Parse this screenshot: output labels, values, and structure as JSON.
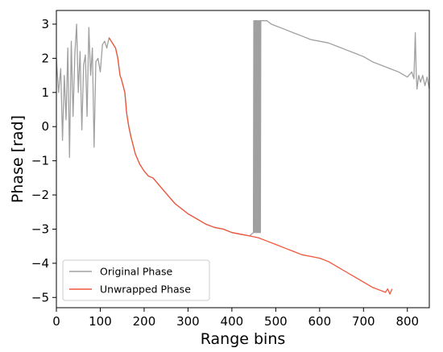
{
  "chart_data": {
    "type": "line",
    "xlabel": "Range bins",
    "ylabel": "Phase [rad]",
    "xlim": [
      0,
      850
    ],
    "ylim": [
      -5.3,
      3.4
    ],
    "xticks": [
      0,
      100,
      200,
      300,
      400,
      500,
      600,
      700,
      800
    ],
    "yticks": [
      -5,
      -4,
      -3,
      -2,
      -1,
      0,
      1,
      2,
      3
    ],
    "grid": false,
    "legend_position": "lower-left",
    "series": [
      {
        "name": "Original Phase",
        "color": "#a0a0a0",
        "x": [
          0,
          5,
          10,
          14,
          18,
          22,
          26,
          30,
          34,
          38,
          42,
          46,
          50,
          54,
          58,
          62,
          66,
          70,
          74,
          78,
          82,
          86,
          90,
          95,
          100,
          105,
          110,
          115,
          120,
          125,
          130,
          135,
          140,
          145,
          148,
          152,
          156,
          160,
          165,
          170,
          180,
          190,
          200,
          210,
          220,
          230,
          240,
          250,
          260,
          270,
          280,
          290,
          300,
          320,
          340,
          360,
          380,
          400,
          420,
          440,
          449,
          450,
          451,
          452,
          453,
          454,
          455,
          456,
          457,
          458,
          459,
          460,
          461,
          462,
          463,
          464,
          465,
          466,
          470,
          480,
          490,
          500,
          520,
          540,
          560,
          580,
          600,
          620,
          640,
          660,
          680,
          700,
          720,
          740,
          760,
          780,
          800,
          810,
          815,
          818,
          820,
          822,
          826,
          830,
          835,
          840,
          845,
          850
        ],
        "y": [
          2.0,
          1.0,
          1.7,
          -0.4,
          1.5,
          0.2,
          2.3,
          -0.9,
          2.5,
          0.3,
          2.1,
          3.0,
          1.0,
          2.2,
          -0.1,
          1.8,
          2.1,
          0.3,
          2.9,
          1.5,
          2.3,
          -0.6,
          1.9,
          2.0,
          1.6,
          2.4,
          2.5,
          2.3,
          2.6,
          2.5,
          2.4,
          2.3,
          2.0,
          1.5,
          1.4,
          1.2,
          1.0,
          0.4,
          0.0,
          -0.3,
          -0.8,
          -1.1,
          -1.3,
          -1.45,
          -1.5,
          -1.65,
          -1.8,
          -1.95,
          -2.1,
          -2.25,
          -2.35,
          -2.45,
          -2.55,
          -2.7,
          -2.85,
          -2.95,
          -3.0,
          -3.1,
          -3.15,
          -3.2,
          -3.1,
          3.1,
          -3.1,
          3.1,
          -3.1,
          3.1,
          -3.1,
          3.1,
          -3.1,
          3.1,
          -3.1,
          3.1,
          -3.1,
          3.1,
          -3.1,
          3.1,
          -3.1,
          3.1,
          3.1,
          3.1,
          3.0,
          2.95,
          2.85,
          2.75,
          2.65,
          2.55,
          2.5,
          2.45,
          2.35,
          2.25,
          2.15,
          2.05,
          1.9,
          1.8,
          1.7,
          1.6,
          1.45,
          1.6,
          1.4,
          2.75,
          1.6,
          1.1,
          1.5,
          1.3,
          1.5,
          1.2,
          1.45,
          1.1
        ]
      },
      {
        "name": "Unwrapped Phase",
        "color": "#f0553a",
        "x": [
          120,
          125,
          130,
          135,
          140,
          145,
          148,
          152,
          156,
          160,
          165,
          170,
          180,
          190,
          200,
          210,
          220,
          230,
          240,
          250,
          260,
          270,
          280,
          290,
          300,
          320,
          340,
          360,
          380,
          400,
          420,
          440,
          460,
          480,
          500,
          520,
          540,
          560,
          580,
          600,
          620,
          640,
          660,
          680,
          700,
          720,
          740,
          750,
          755,
          760,
          765
        ],
        "y": [
          2.6,
          2.5,
          2.4,
          2.3,
          2.0,
          1.5,
          1.4,
          1.2,
          1.0,
          0.4,
          0.0,
          -0.3,
          -0.8,
          -1.1,
          -1.3,
          -1.45,
          -1.5,
          -1.65,
          -1.8,
          -1.95,
          -2.1,
          -2.25,
          -2.35,
          -2.45,
          -2.55,
          -2.7,
          -2.85,
          -2.95,
          -3.0,
          -3.1,
          -3.15,
          -3.2,
          -3.25,
          -3.35,
          -3.45,
          -3.55,
          -3.65,
          -3.75,
          -3.8,
          -3.85,
          -3.95,
          -4.1,
          -4.25,
          -4.4,
          -4.55,
          -4.7,
          -4.8,
          -4.85,
          -4.75,
          -4.9,
          -4.75
        ]
      }
    ]
  }
}
